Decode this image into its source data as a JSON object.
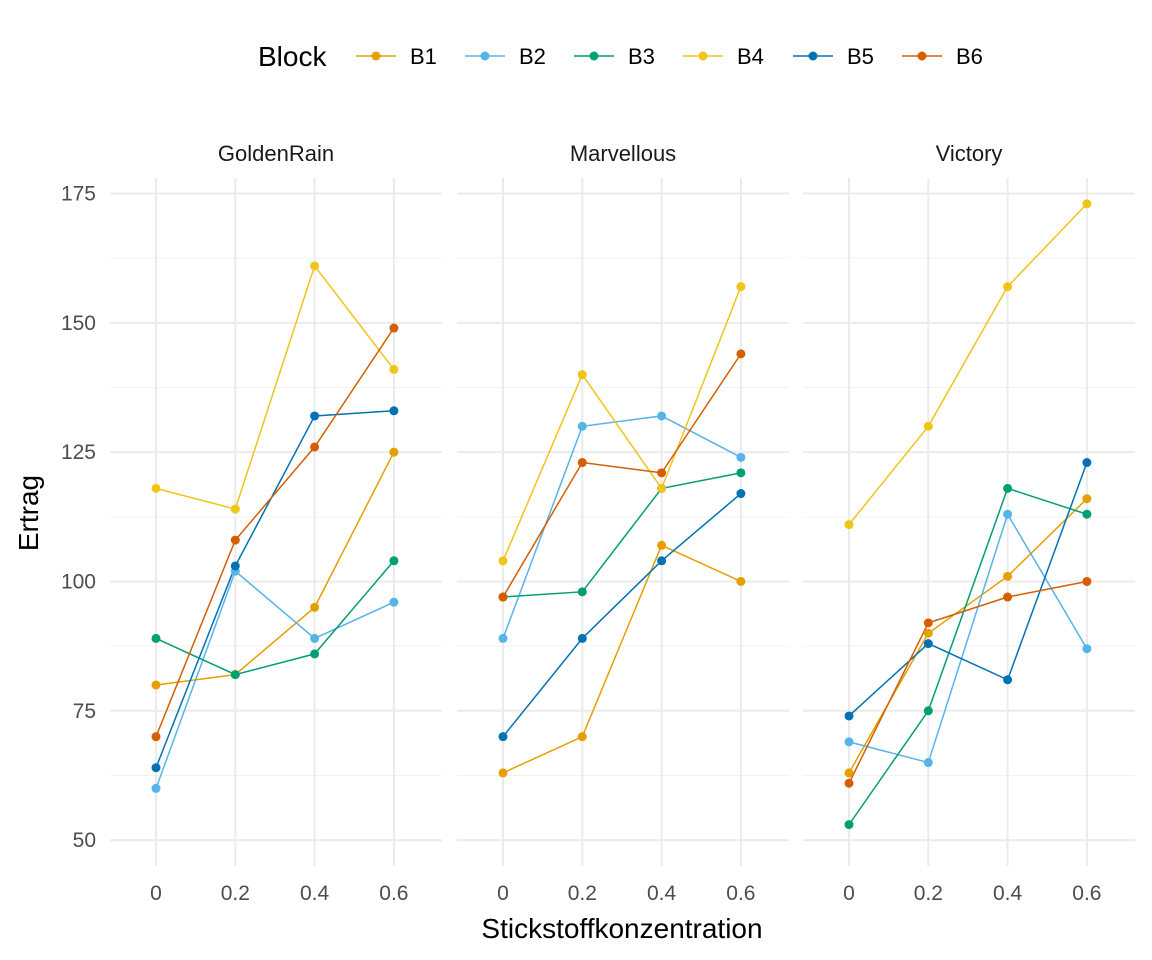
{
  "chart_data": {
    "type": "line",
    "xlabel": "Stickstoffkonzentration",
    "ylabel": "Ertrag",
    "ylim": [
      45,
      178
    ],
    "y_ticks": [
      50,
      75,
      100,
      125,
      150,
      175
    ],
    "y_tick_labels": [
      "50",
      "75",
      "100",
      "125",
      "150",
      "175"
    ],
    "x": [
      0,
      0.2,
      0.4,
      0.6
    ],
    "x_tick_labels": [
      "0",
      "0.2",
      "0.4",
      "0.6"
    ],
    "grid": true,
    "legend": {
      "title": "Block",
      "position": "top"
    },
    "colors": {
      "B1": "#E69F00",
      "B2": "#56B4E9",
      "B3": "#009E73",
      "B4": "#F0C419",
      "B5": "#0072B2",
      "B6": "#D55E00"
    },
    "series_names": [
      "B1",
      "B2",
      "B3",
      "B4",
      "B5",
      "B6"
    ],
    "panels": [
      {
        "title": "GoldenRain",
        "series": [
          {
            "name": "B1",
            "values": [
              80,
              82,
              95,
              125
            ]
          },
          {
            "name": "B2",
            "values": [
              60,
              102,
              89,
              96
            ]
          },
          {
            "name": "B3",
            "values": [
              89,
              82,
              86,
              104
            ]
          },
          {
            "name": "B4",
            "values": [
              118,
              114,
              161,
              141
            ]
          },
          {
            "name": "B5",
            "values": [
              64,
              103,
              132,
              133
            ]
          },
          {
            "name": "B6",
            "values": [
              70,
              108,
              126,
              149
            ]
          }
        ]
      },
      {
        "title": "Marvellous",
        "series": [
          {
            "name": "B1",
            "values": [
              63,
              70,
              107,
              100
            ]
          },
          {
            "name": "B2",
            "values": [
              89,
              130,
              132,
              124
            ]
          },
          {
            "name": "B3",
            "values": [
              97,
              98,
              118,
              121
            ]
          },
          {
            "name": "B4",
            "values": [
              104,
              140,
              118,
              157
            ]
          },
          {
            "name": "B5",
            "values": [
              70,
              89,
              104,
              117
            ]
          },
          {
            "name": "B6",
            "values": [
              97,
              123,
              121,
              144
            ]
          }
        ]
      },
      {
        "title": "Victory",
        "series": [
          {
            "name": "B1",
            "values": [
              63,
              90,
              101,
              116
            ]
          },
          {
            "name": "B2",
            "values": [
              69,
              65,
              113,
              87
            ]
          },
          {
            "name": "B3",
            "values": [
              53,
              75,
              118,
              113
            ]
          },
          {
            "name": "B4",
            "values": [
              111,
              130,
              157,
              173
            ]
          },
          {
            "name": "B5",
            "values": [
              74,
              88,
              81,
              123
            ]
          },
          {
            "name": "B6",
            "values": [
              61,
              92,
              97,
              100
            ]
          }
        ]
      }
    ]
  }
}
